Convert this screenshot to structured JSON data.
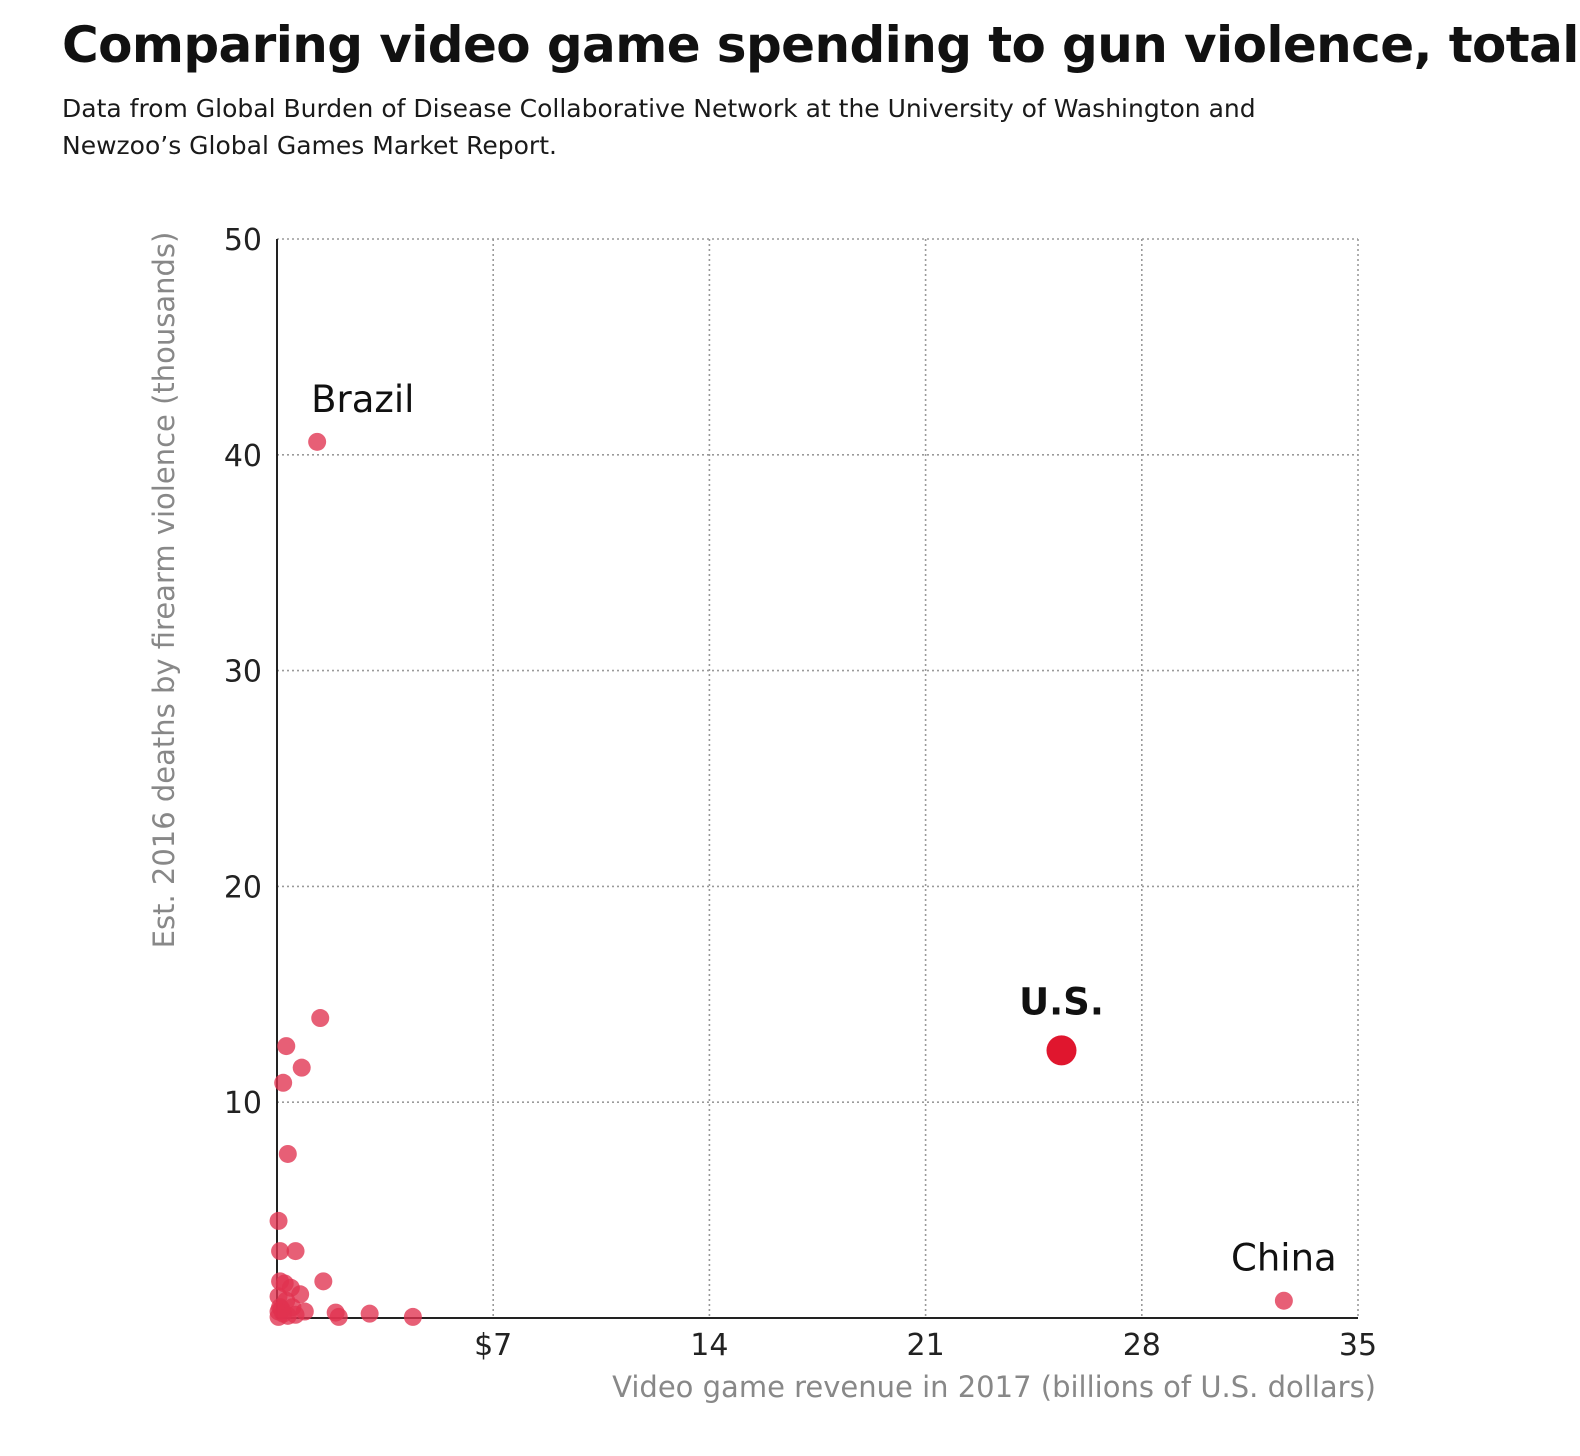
{
  "title": "Comparing video game spending to gun violence, total",
  "subtitle": "Data from Global Burden of Disease Collaborative Network at the University of Washington and Newzoo’s Global Games Market Report.",
  "colors": {
    "point": "#e0324f",
    "highlight": "#e0162e",
    "grid": "#9a9a9a",
    "axis": "#222222"
  },
  "chart_data": {
    "type": "scatter",
    "title": "Comparing video game spending to gun violence, total",
    "xlabel": "Video game revenue in 2017 (billions of U.S. dollars)",
    "ylabel": "Est. 2016 deaths by firearm violence (thousands)",
    "xlim": [
      0,
      35
    ],
    "ylim": [
      0,
      50
    ],
    "x_ticks": [
      7,
      14,
      21,
      28,
      35
    ],
    "x_tick_labels": [
      "$7",
      "14",
      "21",
      "28",
      "35"
    ],
    "y_ticks": [
      10,
      20,
      30,
      40,
      50
    ],
    "y_tick_labels": [
      "10",
      "20",
      "30",
      "40",
      "50"
    ],
    "grid": true,
    "points": [
      {
        "x": 1.3,
        "y": 40.6,
        "label": "Brazil"
      },
      {
        "x": 25.4,
        "y": 12.4,
        "label": "U.S.",
        "highlight": true
      },
      {
        "x": 32.6,
        "y": 0.8,
        "label": "China"
      },
      {
        "x": 1.4,
        "y": 13.9
      },
      {
        "x": 0.3,
        "y": 12.6
      },
      {
        "x": 0.8,
        "y": 11.6
      },
      {
        "x": 0.2,
        "y": 10.9
      },
      {
        "x": 0.35,
        "y": 7.6
      },
      {
        "x": 0.05,
        "y": 4.5
      },
      {
        "x": 0.1,
        "y": 3.1
      },
      {
        "x": 0.6,
        "y": 3.1
      },
      {
        "x": 1.5,
        "y": 1.7
      },
      {
        "x": 0.1,
        "y": 1.7
      },
      {
        "x": 0.25,
        "y": 1.6
      },
      {
        "x": 0.45,
        "y": 1.4
      },
      {
        "x": 0.75,
        "y": 1.1
      },
      {
        "x": 0.05,
        "y": 1.0
      },
      {
        "x": 0.3,
        "y": 0.8
      },
      {
        "x": 0.1,
        "y": 0.5
      },
      {
        "x": 0.5,
        "y": 0.5
      },
      {
        "x": 0.9,
        "y": 0.3
      },
      {
        "x": 0.05,
        "y": 0.3
      },
      {
        "x": 0.2,
        "y": 0.2
      },
      {
        "x": 0.35,
        "y": 0.1
      },
      {
        "x": 0.6,
        "y": 0.15
      },
      {
        "x": 0.05,
        "y": 0.05
      },
      {
        "x": 0.15,
        "y": 0.4
      },
      {
        "x": 1.9,
        "y": 0.25
      },
      {
        "x": 2.0,
        "y": 0.05
      },
      {
        "x": 3.0,
        "y": 0.2
      },
      {
        "x": 4.4,
        "y": 0.05
      }
    ]
  }
}
